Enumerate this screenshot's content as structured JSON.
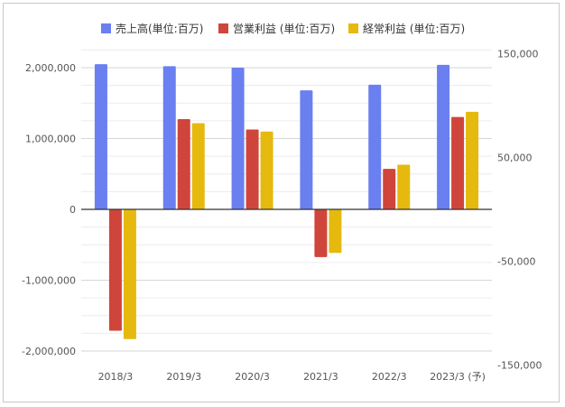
{
  "chart_data": {
    "type": "bar",
    "categories": [
      "2018/3",
      "2019/3",
      "2020/3",
      "2021/3",
      "2022/3",
      "2023/3 (予)"
    ],
    "series": [
      {
        "name": "売上高(単位:百万)",
        "axis": "left",
        "color": "#6a7ff0",
        "values": [
          2050000,
          2020000,
          2000000,
          1680000,
          1760000,
          2040000
        ]
      },
      {
        "name": "営業利益 (単位:百万)",
        "axis": "right",
        "color": "#d0453b",
        "values": [
          -117000,
          87000,
          77000,
          -46000,
          39000,
          89000
        ]
      },
      {
        "name": "経常利益 (単位:百万)",
        "axis": "right",
        "color": "#e6b90f",
        "values": [
          -125000,
          83000,
          75000,
          -42000,
          43000,
          94000
        ]
      }
    ],
    "left_axis": {
      "ylim": [
        -2200000,
        2200000
      ],
      "ticks": [
        2000000,
        1000000,
        0,
        -1000000,
        -2000000
      ],
      "tick_labels": [
        "2,000,000",
        "1,000,000",
        "0",
        "-1,000,000",
        "-2,000,000"
      ]
    },
    "right_axis": {
      "ylim": [
        -150000,
        150000
      ],
      "ticks": [
        150000,
        50000,
        -50000,
        -150000
      ],
      "tick_labels": [
        "150,000",
        "50,000",
        "-50,000",
        "-150,000"
      ]
    },
    "legend_position": "top",
    "grid": true
  }
}
